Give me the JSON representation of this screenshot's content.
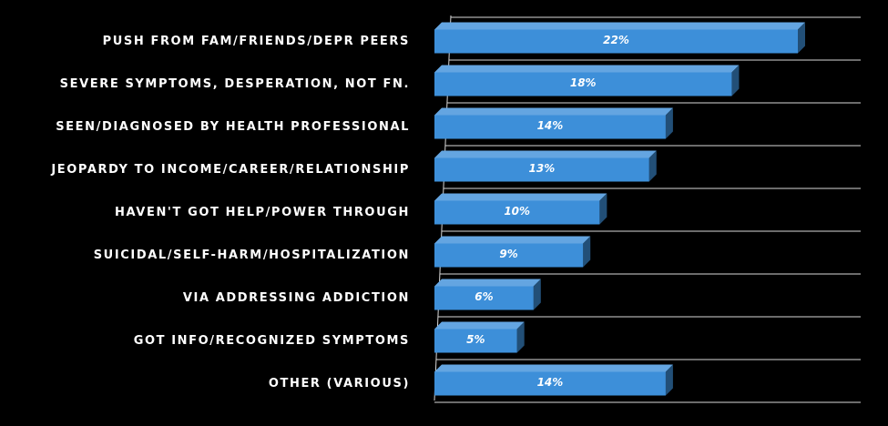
{
  "chart_data": {
    "type": "bar",
    "orientation": "horizontal",
    "categories": [
      "PUSH FROM FAM/FRIENDS/DEPR PEERS",
      "SEVERE SYMPTOMS, DESPERATION, NOT FN.",
      "SEEN/DIAGNOSED BY HEALTH PROFESSIONAL",
      "JEOPARDY TO INCOME/CAREER/RELATIONSHIP",
      "HAVEN'T GOT HELP/POWER THROUGH",
      "SUICIDAL/SELF-HARM/HOSPITALIZATION",
      "VIA ADDRESSING ADDICTION",
      "GOT INFO/RECOGNIZED SYMPTOMS",
      "OTHER (VARIOUS)"
    ],
    "values": [
      22,
      18,
      14,
      13,
      10,
      9,
      6,
      5,
      14
    ],
    "value_labels": [
      "22%",
      "18%",
      "14%",
      "13%",
      "10%",
      "9%",
      "6%",
      "5%",
      "14%"
    ],
    "color": "#3d8fd9"
  }
}
